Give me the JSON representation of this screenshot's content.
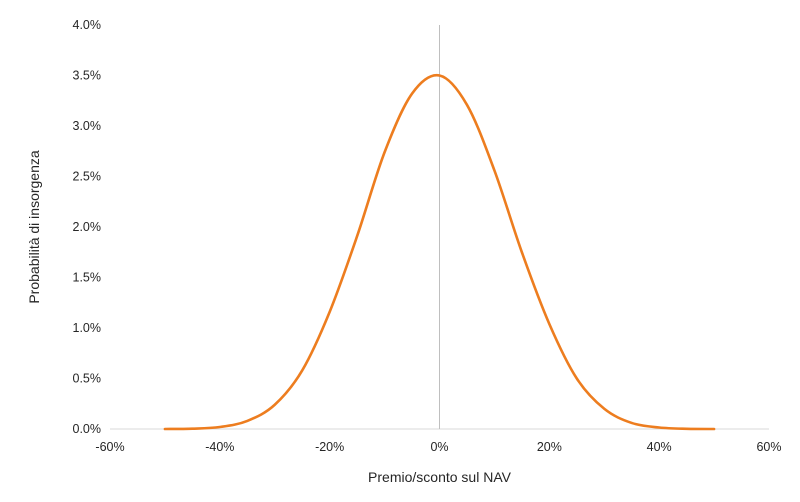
{
  "chart_data": {
    "type": "line",
    "title": "",
    "xlabel": "Premio/sconto sul NAV",
    "ylabel": "Probabilità di insorgenza",
    "xlim": [
      -60,
      60
    ],
    "ylim": [
      0,
      4.0
    ],
    "x_ticks": [
      "-60%",
      "-40%",
      "-20%",
      "0%",
      "20%",
      "40%",
      "60%"
    ],
    "x_tick_values": [
      -60,
      -40,
      -20,
      0,
      20,
      40,
      60
    ],
    "y_ticks": [
      "0.0%",
      "0.5%",
      "1.0%",
      "1.5%",
      "2.0%",
      "2.5%",
      "3.0%",
      "3.5%",
      "4.0%"
    ],
    "y_tick_values": [
      0,
      0.5,
      1.0,
      1.5,
      2.0,
      2.5,
      3.0,
      3.5,
      4.0
    ],
    "vertical_reference_line_x": 0,
    "grid": false,
    "legend": "none",
    "series": [
      {
        "color": "#ED7D1F",
        "x": [
          -50,
          -45,
          -40,
          -35,
          -30,
          -25,
          -20,
          -15,
          -10,
          -5,
          0,
          5,
          10,
          15,
          20,
          25,
          30,
          35,
          40,
          45,
          50
        ],
        "y": [
          0.0,
          0.003,
          0.02,
          0.08,
          0.24,
          0.58,
          1.16,
          1.91,
          2.74,
          3.32,
          3.5,
          3.21,
          2.56,
          1.75,
          1.04,
          0.5,
          0.2,
          0.06,
          0.015,
          0.002,
          0.0
        ]
      }
    ]
  }
}
